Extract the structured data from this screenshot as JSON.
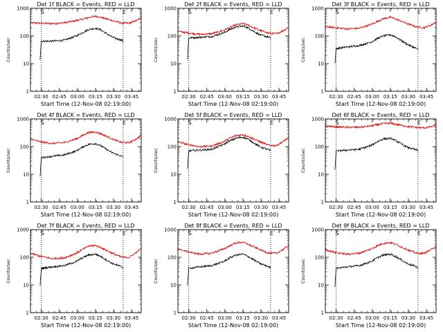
{
  "colors": {
    "events": "#000000",
    "lld": "#dd0000",
    "background": "#ffffff"
  },
  "chart_data": [
    {
      "type": "line",
      "title": "Det 1f BLACK = Events, RED = LLD",
      "xlabel": "Start Time (12-Nov-08 02:19:00)",
      "ylabel": "Counts/sec",
      "yscale": "log",
      "ylim": [
        1,
        1000
      ],
      "yticks": [
        "1",
        "10",
        "100",
        "1000"
      ],
      "xticks": [
        "02:30",
        "02:45",
        "03:00",
        "03:15",
        "03:30",
        "03:45"
      ],
      "xlim_minutes": [
        2,
        94
      ],
      "markers": [
        {
          "label": "S",
          "minute": 11
        },
        {
          "label": "E",
          "minute": 79
        }
      ],
      "series": [
        {
          "name": "LLD",
          "x": [
            2,
            10,
            20,
            30,
            40,
            45,
            50,
            56,
            60,
            70,
            78,
            84,
            90,
            94
          ],
          "values": [
            300,
            290,
            280,
            300,
            360,
            400,
            460,
            520,
            480,
            360,
            290,
            290,
            360,
            450
          ]
        },
        {
          "name": "Events",
          "x": [
            10,
            11,
            20,
            30,
            40,
            45,
            50,
            56,
            60,
            70,
            78,
            79
          ],
          "values": [
            15,
            65,
            65,
            70,
            100,
            130,
            170,
            190,
            170,
            90,
            70,
            60
          ]
        }
      ]
    },
    {
      "type": "line",
      "title": "Det 2f BLACK = Events, RED = LLD",
      "xlabel": "Start Time (12-Nov-08 02:19:00)",
      "ylabel": "Counts/sec",
      "yscale": "log",
      "ylim": [
        1,
        1000
      ],
      "yticks": [
        "1",
        "10",
        "100",
        "1000"
      ],
      "xticks": [
        "02:30",
        "02:45",
        "03:00",
        "03:15",
        "03:30",
        "03:45"
      ],
      "xlim_minutes": [
        2,
        94
      ],
      "markers": [
        {
          "label": "S",
          "minute": 11
        },
        {
          "label": "E",
          "minute": 79
        }
      ],
      "series": [
        {
          "name": "LLD",
          "x": [
            2,
            10,
            20,
            30,
            40,
            45,
            50,
            56,
            60,
            70,
            78,
            84,
            90,
            94
          ],
          "values": [
            150,
            130,
            115,
            120,
            160,
            200,
            250,
            280,
            250,
            160,
            125,
            120,
            160,
            210
          ]
        },
        {
          "name": "Events",
          "x": [
            10,
            11,
            20,
            30,
            40,
            45,
            50,
            56,
            60,
            70,
            78,
            79
          ],
          "values": [
            15,
            85,
            90,
            95,
            130,
            170,
            210,
            230,
            200,
            110,
            90,
            80
          ]
        }
      ]
    },
    {
      "type": "line",
      "title": "Det 3f BLACK = Events, RED = LLD",
      "xlabel": "Start Time (12-Nov-08 02:19:00)",
      "ylabel": "Counts/sec",
      "yscale": "log",
      "ylim": [
        1,
        1000
      ],
      "yticks": [
        "1",
        "10",
        "100",
        "1000"
      ],
      "xticks": [
        "02:30",
        "02:45",
        "03:00",
        "03:15",
        "03:30",
        "03:45"
      ],
      "xlim_minutes": [
        2,
        94
      ],
      "markers": [
        {
          "label": "S",
          "minute": 11
        },
        {
          "label": "E",
          "minute": 79
        }
      ],
      "series": [
        {
          "name": "LLD",
          "x": [
            2,
            10,
            20,
            30,
            40,
            45,
            50,
            56,
            60,
            70,
            78,
            84,
            90,
            94
          ],
          "values": [
            220,
            200,
            180,
            190,
            260,
            330,
            420,
            480,
            420,
            280,
            210,
            200,
            250,
            320
          ]
        },
        {
          "name": "Events",
          "x": [
            10,
            11,
            20,
            30,
            40,
            45,
            50,
            56,
            60,
            70,
            78,
            79
          ],
          "values": [
            10,
            35,
            40,
            45,
            60,
            80,
            100,
            110,
            95,
            50,
            35,
            30
          ]
        }
      ]
    },
    {
      "type": "line",
      "title": "Det 4f BLACK = Events, RED = LLD",
      "xlabel": "Start Time (12-Nov-08 02:19:00)",
      "ylabel": "Counts/sec",
      "yscale": "log",
      "ylim": [
        1,
        1000
      ],
      "yticks": [
        "1",
        "10",
        "100",
        "1000"
      ],
      "xticks": [
        "02:30",
        "02:45",
        "03:00",
        "03:15",
        "03:30",
        "03:45"
      ],
      "xlim_minutes": [
        2,
        94
      ],
      "markers": [
        {
          "label": "S",
          "minute": 11
        },
        {
          "label": "E",
          "minute": 79
        }
      ],
      "series": [
        {
          "name": "LLD",
          "x": [
            2,
            10,
            20,
            30,
            40,
            45,
            50,
            56,
            60,
            70,
            78,
            84,
            90,
            94
          ],
          "values": [
            190,
            150,
            130,
            140,
            190,
            250,
            320,
            340,
            300,
            190,
            140,
            140,
            190,
            260
          ]
        },
        {
          "name": "Events",
          "x": [
            10,
            11,
            20,
            30,
            40,
            45,
            50,
            56,
            60,
            70,
            78,
            79
          ],
          "values": [
            8,
            40,
            45,
            50,
            70,
            95,
            120,
            130,
            110,
            60,
            45,
            40
          ]
        }
      ]
    },
    {
      "type": "line",
      "title": "Det 5f BLACK = Events, RED = LLD",
      "xlabel": "Start Time (12-Nov-08 02:19:00)",
      "ylabel": "Counts/sec",
      "yscale": "log",
      "ylim": [
        1,
        1000
      ],
      "yticks": [
        "1",
        "10",
        "100",
        "1000"
      ],
      "xticks": [
        "02:30",
        "02:45",
        "03:00",
        "03:15",
        "03:30",
        "03:45"
      ],
      "xlim_minutes": [
        2,
        94
      ],
      "markers": [
        {
          "label": "S",
          "minute": 11
        },
        {
          "label": "E",
          "minute": 79
        }
      ],
      "series": [
        {
          "name": "LLD",
          "x": [
            2,
            10,
            20,
            30,
            40,
            45,
            50,
            56,
            60,
            70,
            78,
            84,
            90,
            94
          ],
          "values": [
            150,
            120,
            100,
            105,
            150,
            200,
            250,
            270,
            240,
            150,
            110,
            110,
            160,
            210
          ]
        },
        {
          "name": "Events",
          "x": [
            10,
            11,
            20,
            30,
            40,
            45,
            50,
            56,
            60,
            70,
            78,
            79
          ],
          "values": [
            15,
            70,
            75,
            80,
            120,
            160,
            200,
            220,
            190,
            100,
            75,
            70
          ]
        }
      ]
    },
    {
      "type": "line",
      "title": "Det 6f BLACK = Events, RED = LLD",
      "xlabel": "Start Time (12-Nov-08 02:19:00)",
      "ylabel": "Counts/sec",
      "yscale": "log",
      "ylim": [
        1,
        1000
      ],
      "yticks": [
        "1",
        "10",
        "100",
        "1000"
      ],
      "xticks": [
        "02:30",
        "02:45",
        "03:00",
        "03:15",
        "03:30",
        "03:45"
      ],
      "xlim_minutes": [
        2,
        94
      ],
      "markers": [
        {
          "label": "S",
          "minute": 11
        },
        {
          "label": "E",
          "minute": 79
        }
      ],
      "series": [
        {
          "name": "LLD",
          "x": [
            2,
            10,
            20,
            30,
            40,
            45,
            50,
            56,
            60,
            70,
            78,
            84,
            90,
            94
          ],
          "values": [
            560,
            520,
            500,
            500,
            560,
            620,
            680,
            700,
            650,
            540,
            490,
            480,
            520,
            600
          ]
        },
        {
          "name": "Events",
          "x": [
            10,
            11,
            20,
            30,
            40,
            45,
            50,
            56,
            60,
            70,
            78,
            79
          ],
          "values": [
            15,
            70,
            75,
            80,
            110,
            150,
            190,
            200,
            170,
            95,
            75,
            70
          ]
        }
      ]
    },
    {
      "type": "line",
      "title": "Det 7f BLACK = Events, RED = LLD",
      "xlabel": "Start Time (12-Nov-08 02:19:00)",
      "ylabel": "Counts/sec",
      "yscale": "log",
      "ylim": [
        1,
        1000
      ],
      "yticks": [
        "1",
        "10",
        "100",
        "1000"
      ],
      "xticks": [
        "02:30",
        "02:45",
        "03:00",
        "03:15",
        "03:30",
        "03:45"
      ],
      "xlim_minutes": [
        2,
        94
      ],
      "markers": [
        {
          "label": "S",
          "minute": 11
        },
        {
          "label": "E",
          "minute": 79
        }
      ],
      "series": [
        {
          "name": "LLD",
          "x": [
            2,
            10,
            20,
            30,
            40,
            45,
            50,
            56,
            60,
            70,
            78,
            84,
            90,
            94
          ],
          "values": [
            140,
            110,
            90,
            95,
            140,
            190,
            250,
            270,
            230,
            140,
            100,
            100,
            150,
            210
          ]
        },
        {
          "name": "Events",
          "x": [
            10,
            11,
            20,
            30,
            40,
            45,
            50,
            56,
            60,
            70,
            78,
            79
          ],
          "values": [
            9,
            40,
            45,
            50,
            70,
            95,
            120,
            130,
            110,
            60,
            45,
            40
          ]
        }
      ]
    },
    {
      "type": "line",
      "title": "Det 8f BLACK = Events, RED = LLD",
      "xlabel": "Start Time (12-Nov-08 02:19:00)",
      "ylabel": "Counts/sec",
      "yscale": "log",
      "ylim": [
        1,
        1000
      ],
      "yticks": [
        "1",
        "10",
        "100",
        "1000"
      ],
      "xticks": [
        "02:30",
        "02:45",
        "03:00",
        "03:15",
        "03:30",
        "03:45"
      ],
      "xlim_minutes": [
        2,
        94
      ],
      "markers": [
        {
          "label": "S",
          "minute": 11
        },
        {
          "label": "E",
          "minute": 79
        }
      ],
      "series": [
        {
          "name": "LLD",
          "x": [
            2,
            10,
            20,
            30,
            40,
            45,
            50,
            56,
            60,
            70,
            78,
            84,
            90,
            94
          ],
          "values": [
            200,
            160,
            130,
            140,
            200,
            260,
            330,
            350,
            300,
            190,
            140,
            140,
            200,
            270
          ]
        },
        {
          "name": "Events",
          "x": [
            10,
            11,
            20,
            30,
            40,
            45,
            50,
            56,
            60,
            70,
            78,
            79
          ],
          "values": [
            10,
            40,
            45,
            50,
            70,
            95,
            120,
            130,
            110,
            60,
            45,
            40
          ]
        }
      ]
    },
    {
      "type": "line",
      "title": "Det 9f BLACK = Events, RED = LLD",
      "xlabel": "Start Time (12-Nov-08 02:19:00)",
      "ylabel": "Counts/sec",
      "yscale": "log",
      "ylim": [
        1,
        1000
      ],
      "yticks": [
        "1",
        "10",
        "100",
        "1000"
      ],
      "xticks": [
        "02:30",
        "02:45",
        "03:00",
        "03:15",
        "03:30",
        "03:45"
      ],
      "xlim_minutes": [
        2,
        94
      ],
      "markers": [
        {
          "label": "S",
          "minute": 11
        },
        {
          "label": "E",
          "minute": 79
        }
      ],
      "series": [
        {
          "name": "LLD",
          "x": [
            2,
            10,
            20,
            30,
            40,
            45,
            50,
            56,
            60,
            70,
            78,
            84,
            90,
            94
          ],
          "values": [
            190,
            150,
            130,
            140,
            200,
            260,
            320,
            340,
            300,
            190,
            140,
            140,
            190,
            260
          ]
        },
        {
          "name": "Events",
          "x": [
            10,
            11,
            20,
            30,
            40,
            45,
            50,
            56,
            60,
            70,
            78,
            79
          ],
          "values": [
            9,
            40,
            45,
            50,
            70,
            95,
            120,
            130,
            110,
            60,
            45,
            40
          ]
        }
      ]
    }
  ]
}
